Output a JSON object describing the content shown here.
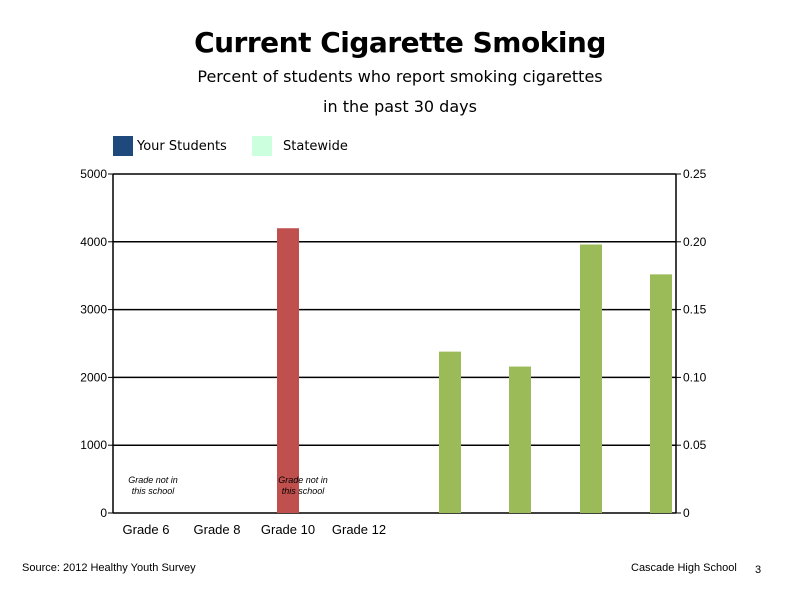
{
  "chart_data": {
    "type": "bar",
    "title": "Current Cigarette Smoking",
    "subtitle_lines": [
      "Percent of students who report smoking cigarettes",
      "in the past 30 days"
    ],
    "legend": [
      {
        "name": "Your Students",
        "color": "#1f497d"
      },
      {
        "name": "Statewide",
        "color": "#ccffdd"
      }
    ],
    "categories": [
      "Grade 6",
      "Grade 8",
      "Grade 10",
      "Grade 12"
    ],
    "y_left": {
      "ticks": [
        "0",
        "1000",
        "2000",
        "3000",
        "4000",
        "5000"
      ],
      "ylim": [
        0,
        5000
      ]
    },
    "y_right": {
      "ticks": [
        "0",
        "0.05",
        "0.10",
        "0.15",
        "0.20",
        "0.25"
      ],
      "ylim": [
        0,
        0.25
      ]
    },
    "grid": true,
    "bars": [
      {
        "axis": "left",
        "category": "Grade 10",
        "value": 4200,
        "color": "#c0504d"
      },
      {
        "axis": "right",
        "value": 0.119,
        "color": "#9bbb59"
      },
      {
        "axis": "right",
        "value": 0.108,
        "color": "#9bbb59"
      },
      {
        "axis": "right",
        "value": 0.198,
        "color": "#9bbb59"
      },
      {
        "axis": "right",
        "value": 0.176,
        "color": "#9bbb59"
      }
    ],
    "annotations": [
      {
        "category": "Grade 6",
        "lines": [
          "Grade not in",
          "this school"
        ]
      },
      {
        "category": "Grade 10",
        "lines": [
          "Grade not in",
          "this school"
        ]
      }
    ]
  },
  "footer": {
    "source": "Source: 2012 Healthy Youth Survey",
    "school": "Cascade High School",
    "page": "3"
  }
}
